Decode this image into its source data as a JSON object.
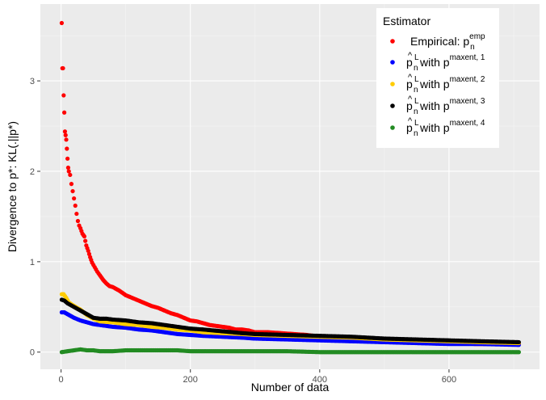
{
  "chart_data": {
    "type": "scatter",
    "title": "",
    "xlabel": "Number of data",
    "ylabel": "Divergence to p*: KL(.||p*)",
    "xlim": [
      -32,
      740
    ],
    "ylim": [
      -0.19,
      3.85
    ],
    "x_ticks": [
      0,
      200,
      400,
      600
    ],
    "y_ticks": [
      0,
      1,
      2,
      3
    ],
    "grid": true,
    "legend_position": "top-right",
    "legend_title": "Estimator",
    "series": [
      {
        "name": "Empirical: p_n^emp",
        "legend": {
          "base": "Empirical: p",
          "sup": "emp",
          "sub": "n"
        },
        "color": "#FF0000",
        "points": [
          [
            1,
            3.64
          ],
          [
            2,
            3.14
          ],
          [
            3,
            3.14
          ],
          [
            4,
            2.84
          ],
          [
            5,
            2.65
          ],
          [
            6,
            2.44
          ],
          [
            7,
            2.4
          ],
          [
            8,
            2.35
          ],
          [
            9,
            2.25
          ],
          [
            10,
            2.14
          ],
          [
            11,
            2.04
          ],
          [
            12,
            2.0
          ],
          [
            14,
            1.96
          ],
          [
            16,
            1.86
          ],
          [
            18,
            1.78
          ],
          [
            20,
            1.7
          ],
          [
            22,
            1.62
          ],
          [
            24,
            1.53
          ],
          [
            26,
            1.45
          ],
          [
            28,
            1.4
          ],
          [
            30,
            1.37
          ],
          [
            33,
            1.31
          ],
          [
            36,
            1.28
          ],
          [
            39,
            1.18
          ],
          [
            42,
            1.12
          ],
          [
            45,
            1.05
          ],
          [
            48,
            0.99
          ],
          [
            52,
            0.94
          ],
          [
            56,
            0.89
          ],
          [
            60,
            0.85
          ],
          [
            65,
            0.8
          ],
          [
            70,
            0.76
          ],
          [
            75,
            0.73
          ],
          [
            80,
            0.72
          ],
          [
            90,
            0.68
          ],
          [
            100,
            0.63
          ],
          [
            110,
            0.6
          ],
          [
            120,
            0.57
          ],
          [
            130,
            0.54
          ],
          [
            140,
            0.51
          ],
          [
            150,
            0.49
          ],
          [
            160,
            0.46
          ],
          [
            170,
            0.43
          ],
          [
            180,
            0.41
          ],
          [
            190,
            0.38
          ],
          [
            200,
            0.35
          ],
          [
            210,
            0.34
          ],
          [
            220,
            0.32
          ],
          [
            230,
            0.3
          ],
          [
            240,
            0.29
          ],
          [
            250,
            0.28
          ],
          [
            260,
            0.27
          ],
          [
            270,
            0.25
          ],
          [
            280,
            0.25
          ],
          [
            290,
            0.24
          ],
          [
            300,
            0.22
          ],
          [
            320,
            0.22
          ],
          [
            340,
            0.21
          ],
          [
            360,
            0.2
          ],
          [
            380,
            0.19
          ],
          [
            400,
            0.17
          ],
          [
            420,
            0.16
          ],
          [
            440,
            0.15
          ],
          [
            460,
            0.14
          ],
          [
            480,
            0.13
          ],
          [
            500,
            0.12
          ],
          [
            520,
            0.12
          ],
          [
            540,
            0.11
          ],
          [
            560,
            0.11
          ],
          [
            580,
            0.1
          ],
          [
            600,
            0.1
          ],
          [
            620,
            0.1
          ],
          [
            640,
            0.09
          ],
          [
            660,
            0.09
          ],
          [
            680,
            0.09
          ],
          [
            700,
            0.09
          ],
          [
            708,
            0.09
          ]
        ]
      },
      {
        "name": "p̂_n^L with p^maxent,1",
        "legend": {
          "base": "p",
          "sup": "L",
          "sub": "n",
          "mid": " with p",
          "sup2": "maxent, 1"
        },
        "color": "#0000FF",
        "points": [
          [
            1,
            0.44
          ],
          [
            5,
            0.44
          ],
          [
            10,
            0.42
          ],
          [
            15,
            0.4
          ],
          [
            20,
            0.38
          ],
          [
            30,
            0.35
          ],
          [
            40,
            0.33
          ],
          [
            50,
            0.31
          ],
          [
            60,
            0.3
          ],
          [
            80,
            0.28
          ],
          [
            100,
            0.27
          ],
          [
            120,
            0.25
          ],
          [
            140,
            0.24
          ],
          [
            160,
            0.22
          ],
          [
            180,
            0.2
          ],
          [
            200,
            0.19
          ],
          [
            220,
            0.18
          ],
          [
            250,
            0.17
          ],
          [
            280,
            0.16
          ],
          [
            300,
            0.15
          ],
          [
            350,
            0.14
          ],
          [
            400,
            0.13
          ],
          [
            450,
            0.12
          ],
          [
            500,
            0.11
          ],
          [
            550,
            0.1
          ],
          [
            600,
            0.09
          ],
          [
            650,
            0.09
          ],
          [
            708,
            0.08
          ]
        ]
      },
      {
        "name": "p̂_n^L with p^maxent,2",
        "legend": {
          "base": "p",
          "sup": "L",
          "sub": "n",
          "mid": " with p",
          "sup2": "maxent, 2"
        },
        "color": "#FFCC00",
        "points": [
          [
            1,
            0.64
          ],
          [
            4,
            0.64
          ],
          [
            8,
            0.6
          ],
          [
            12,
            0.55
          ],
          [
            18,
            0.52
          ],
          [
            25,
            0.49
          ],
          [
            30,
            0.47
          ],
          [
            35,
            0.44
          ],
          [
            40,
            0.41
          ],
          [
            50,
            0.37
          ],
          [
            60,
            0.34
          ],
          [
            80,
            0.33
          ],
          [
            100,
            0.31
          ],
          [
            120,
            0.3
          ],
          [
            140,
            0.28
          ],
          [
            160,
            0.27
          ],
          [
            180,
            0.25
          ],
          [
            200,
            0.24
          ],
          [
            220,
            0.22
          ],
          [
            250,
            0.21
          ],
          [
            280,
            0.2
          ],
          [
            300,
            0.19
          ],
          [
            350,
            0.18
          ],
          [
            400,
            0.17
          ],
          [
            450,
            0.16
          ],
          [
            500,
            0.14
          ],
          [
            550,
            0.13
          ],
          [
            600,
            0.12
          ],
          [
            650,
            0.11
          ],
          [
            708,
            0.1
          ]
        ]
      },
      {
        "name": "p̂_n^L with p^maxent,3",
        "legend": {
          "base": "p",
          "sup": "L",
          "sub": "n",
          "mid": " with p",
          "sup2": "maxent, 3"
        },
        "color": "#000000",
        "points": [
          [
            1,
            0.58
          ],
          [
            5,
            0.57
          ],
          [
            10,
            0.54
          ],
          [
            15,
            0.52
          ],
          [
            20,
            0.5
          ],
          [
            25,
            0.48
          ],
          [
            30,
            0.46
          ],
          [
            35,
            0.44
          ],
          [
            40,
            0.42
          ],
          [
            45,
            0.4
          ],
          [
            50,
            0.38
          ],
          [
            60,
            0.37
          ],
          [
            70,
            0.37
          ],
          [
            80,
            0.36
          ],
          [
            100,
            0.35
          ],
          [
            120,
            0.33
          ],
          [
            140,
            0.32
          ],
          [
            160,
            0.3
          ],
          [
            180,
            0.28
          ],
          [
            200,
            0.26
          ],
          [
            220,
            0.25
          ],
          [
            250,
            0.23
          ],
          [
            280,
            0.21
          ],
          [
            300,
            0.2
          ],
          [
            350,
            0.19
          ],
          [
            400,
            0.18
          ],
          [
            450,
            0.17
          ],
          [
            500,
            0.15
          ],
          [
            550,
            0.14
          ],
          [
            600,
            0.13
          ],
          [
            650,
            0.12
          ],
          [
            708,
            0.11
          ]
        ]
      },
      {
        "name": "p̂_n^L with p^maxent,4",
        "legend": {
          "base": "p",
          "sup": "L",
          "sub": "n",
          "mid": " with p",
          "sup2": "maxent, 4"
        },
        "color": "#228B22",
        "points": [
          [
            1,
            0.0
          ],
          [
            10,
            0.01
          ],
          [
            20,
            0.02
          ],
          [
            30,
            0.03
          ],
          [
            40,
            0.02
          ],
          [
            50,
            0.02
          ],
          [
            60,
            0.01
          ],
          [
            80,
            0.01
          ],
          [
            100,
            0.02
          ],
          [
            120,
            0.02
          ],
          [
            150,
            0.02
          ],
          [
            180,
            0.02
          ],
          [
            200,
            0.01
          ],
          [
            250,
            0.01
          ],
          [
            300,
            0.01
          ],
          [
            350,
            0.01
          ],
          [
            400,
            0.0
          ],
          [
            450,
            0.0
          ],
          [
            500,
            0.0
          ],
          [
            550,
            0.0
          ],
          [
            600,
            0.0
          ],
          [
            650,
            0.0
          ],
          [
            708,
            0.0
          ]
        ]
      }
    ]
  }
}
